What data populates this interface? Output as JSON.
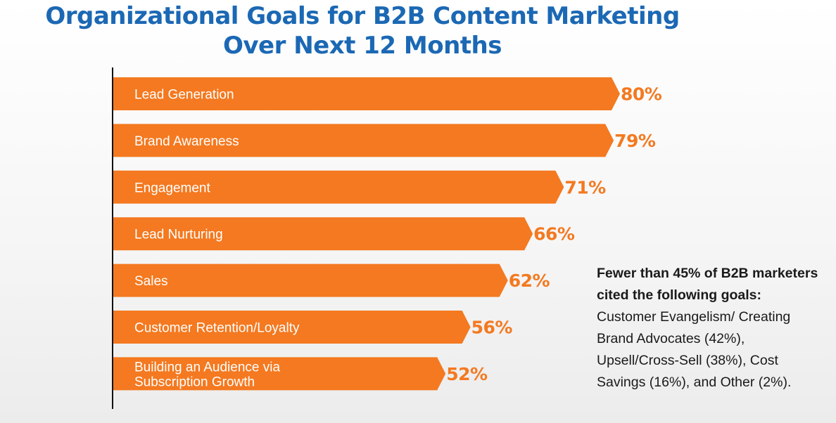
{
  "header": {
    "title_line1": "Organizational Goals for B2B Content Marketing",
    "title_line2": "Over Next 12 Months"
  },
  "colors": {
    "title": "#1b68b4",
    "bar": "#f47920",
    "value": "#f47920",
    "axis": "#111111"
  },
  "chart_data": {
    "type": "bar",
    "orientation": "horizontal",
    "title": "Organizational Goals for B2B Content Marketing Over Next 12 Months",
    "categories": [
      [
        "Lead Generation"
      ],
      [
        "Brand Awareness"
      ],
      [
        "Engagement"
      ],
      [
        "Lead Nurturing"
      ],
      [
        "Sales"
      ],
      [
        "Customer Retention/Loyalty"
      ],
      [
        "Building an Audience via",
        "Subscription Growth"
      ]
    ],
    "values": [
      80,
      79,
      71,
      66,
      62,
      56,
      52
    ],
    "value_labels": [
      "80%",
      "79%",
      "71%",
      "66%",
      "62%",
      "56%",
      "52%"
    ],
    "unit": "%",
    "xlim": [
      0,
      80
    ],
    "grid": false,
    "legend": "none"
  },
  "note": {
    "bold": "Fewer than 45% of B2B marketers cited the following goals:",
    "text": " Customer Evangelism/ Creating Brand Advocates (42%), Upsell/Cross-Sell (38%), Cost Savings (16%), and Other (2%)."
  }
}
